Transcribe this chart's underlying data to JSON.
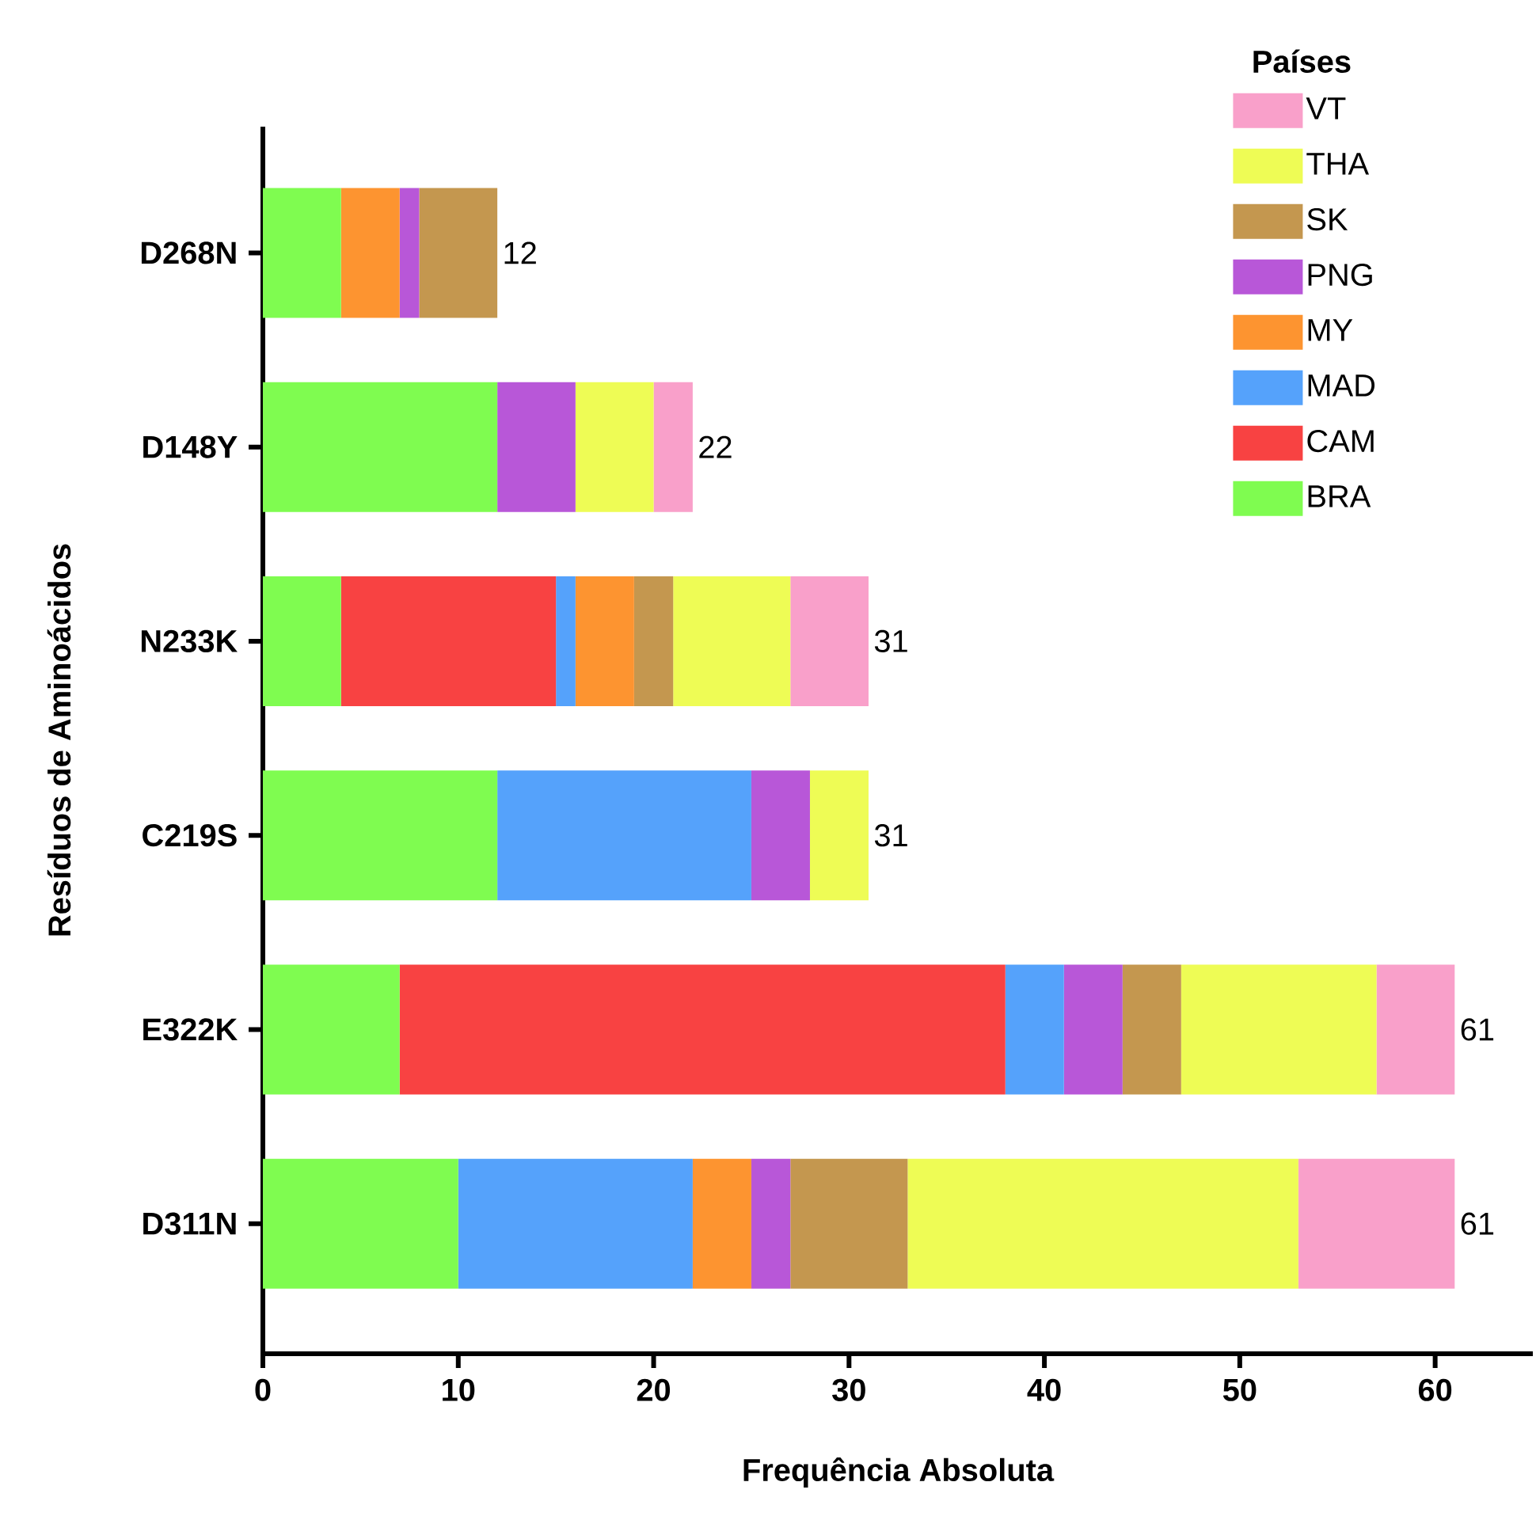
{
  "chart_data": {
    "type": "bar",
    "orientation": "horizontal",
    "stacked": true,
    "xlabel": "Frequência Absoluta",
    "ylabel": "Resíduos de Aminoácidos",
    "legend_title": "Países",
    "legend": "top right",
    "categories": [
      "D268N",
      "D148Y",
      "N233K",
      "C219S",
      "E322K",
      "D311N"
    ],
    "series": [
      {
        "name": "BRA",
        "color": "#7ffc50",
        "values": [
          4,
          12,
          4,
          12,
          7,
          10
        ]
      },
      {
        "name": "CAM",
        "color": "#f84242",
        "values": [
          0,
          0,
          11,
          0,
          31,
          0
        ]
      },
      {
        "name": "MAD",
        "color": "#55a2fb",
        "values": [
          0,
          0,
          1,
          13,
          3,
          12
        ]
      },
      {
        "name": "MY",
        "color": "#fd9430",
        "values": [
          3,
          0,
          3,
          0,
          0,
          3
        ]
      },
      {
        "name": "PNG",
        "color": "#b857d8",
        "values": [
          1,
          4,
          0,
          3,
          3,
          2
        ]
      },
      {
        "name": "SK",
        "color": "#c4974f",
        "values": [
          4,
          0,
          2,
          0,
          3,
          6
        ]
      },
      {
        "name": "THA",
        "color": "#eefc55",
        "values": [
          0,
          4,
          6,
          3,
          10,
          20
        ]
      },
      {
        "name": "VT",
        "color": "#f9a0ca",
        "values": [
          0,
          2,
          4,
          0,
          4,
          8
        ]
      }
    ],
    "totals": [
      "12",
      "22",
      "31",
      "31",
      "61",
      "61"
    ],
    "xlim": [
      0,
      65
    ],
    "xticks": [
      0,
      10,
      20,
      30,
      40,
      50,
      60
    ]
  }
}
